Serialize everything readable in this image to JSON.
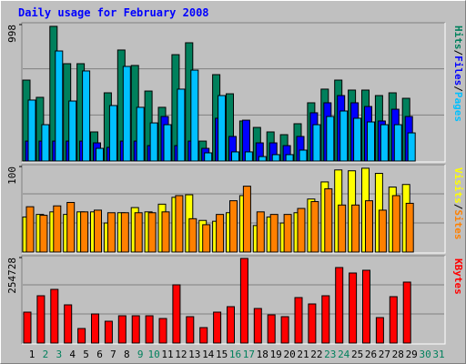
{
  "chart_data": [
    {
      "type": "bar",
      "title": "Daily usage for February 2008",
      "legend_separator": "/",
      "ylim": [
        0,
        998
      ],
      "yticks": [
        998
      ],
      "series": [
        {
          "name": "Hits",
          "color": "#00805c",
          "values": [
            592,
            466,
            985,
            712,
            712,
            213,
            499,
            812,
            699,
            512,
            393,
            778,
            865,
            146,
            632,
            492,
            293,
            246,
            213,
            193,
            273,
            426,
            526,
            592,
            519,
            519,
            479,
            499,
            459,
            null,
            null
          ]
        },
        {
          "name": "Files",
          "color": "#0000ff",
          "values": [
            146,
            146,
            146,
            146,
            146,
            133,
            100,
            146,
            146,
            113,
            326,
            113,
            146,
            93,
            313,
            180,
            299,
            133,
            133,
            113,
            180,
            353,
            426,
            479,
            426,
            399,
            293,
            379,
            326,
            null,
            null
          ]
        },
        {
          "name": "Pages",
          "color": "#00c0ff",
          "values": [
            446,
            266,
            805,
            439,
            659,
            93,
            406,
            692,
            393,
            279,
            266,
            526,
            665,
            60,
            479,
            67,
            67,
            33,
            47,
            47,
            80,
            266,
            326,
            366,
            313,
            286,
            266,
            266,
            206,
            null,
            null
          ]
        }
      ]
    },
    {
      "type": "bar",
      "legend_separator": "/",
      "ylim": [
        0,
        100
      ],
      "yticks": [
        100
      ],
      "series": [
        {
          "name": "Visits",
          "color": "#ffff00",
          "values": [
            41,
            44,
            47,
            44,
            47,
            47,
            34,
            46,
            52,
            47,
            56,
            64,
            67,
            37,
            36,
            46,
            66,
            31,
            41,
            34,
            46,
            62,
            82,
            96,
            95,
            98,
            92,
            76,
            79,
            null,
            null
          ]
        },
        {
          "name": "Sites",
          "color": "#ff8000",
          "values": [
            53,
            43,
            54,
            58,
            47,
            49,
            46,
            46,
            46,
            46,
            47,
            66,
            39,
            32,
            44,
            60,
            77,
            47,
            44,
            44,
            51,
            59,
            74,
            55,
            55,
            60,
            49,
            66,
            57,
            null,
            null
          ]
        }
      ]
    },
    {
      "type": "bar",
      "ylim": [
        0,
        254728
      ],
      "yticks": [
        254728
      ],
      "categories": [
        "1",
        "2",
        "3",
        "4",
        "5",
        "6",
        "7",
        "8",
        "9",
        "10",
        "11",
        "12",
        "13",
        "14",
        "15",
        "16",
        "17",
        "18",
        "19",
        "20",
        "21",
        "22",
        "23",
        "24",
        "25",
        "26",
        "27",
        "28",
        "29",
        "30",
        "31"
      ],
      "category_colors": [
        "#000000",
        "#00805c",
        "#00805c",
        "#000000",
        "#000000",
        "#000000",
        "#000000",
        "#000000",
        "#00805c",
        "#00805c",
        "#000000",
        "#000000",
        "#000000",
        "#000000",
        "#000000",
        "#00805c",
        "#00805c",
        "#000000",
        "#000000",
        "#000000",
        "#000000",
        "#000000",
        "#00805c",
        "#00805c",
        "#000000",
        "#000000",
        "#000000",
        "#000000",
        "#000000",
        "#00805c",
        "#00805c"
      ],
      "series": [
        {
          "name": "KBytes",
          "color": "#ff0000",
          "values": [
            92140,
            140920,
            159890,
            113820,
            43360,
            86720,
            65040,
            81300,
            81300,
            81300,
            73170,
            173440,
            78590,
            46070,
            92140,
            108400,
            252030,
            102980,
            84010,
            78590,
            135500,
            116530,
            140920,
            224930,
            208670,
            216800,
            75880,
            138210,
            181570,
            null,
            null
          ]
        }
      ]
    }
  ]
}
